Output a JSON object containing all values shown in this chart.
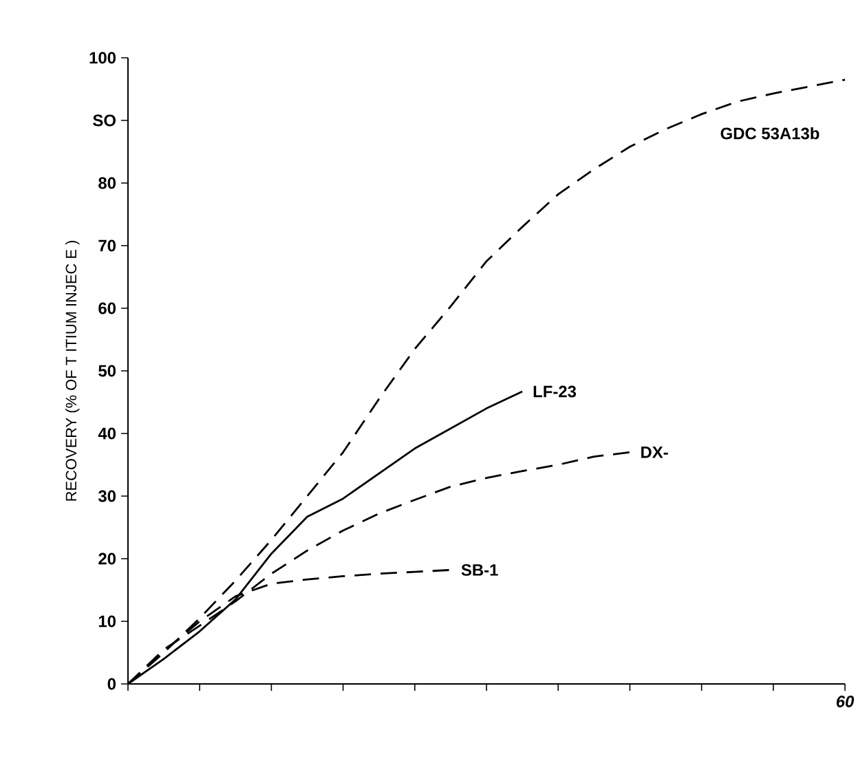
{
  "chart_data": {
    "type": "line",
    "ylabel": "RECOVERY (% OF T ITIUM INJEC E )",
    "categories": [
      null,
      null,
      null,
      null,
      null,
      null,
      null,
      null,
      null,
      null,
      null,
      null,
      null,
      null,
      null,
      null,
      null,
      null,
      null,
      null,
      "60"
    ],
    "ylim": [
      0,
      100
    ],
    "yticks": [
      0,
      10,
      20,
      30,
      40,
      50,
      60,
      70,
      80,
      {
        "value": 90,
        "label": "SO"
      },
      100
    ],
    "grid": false,
    "legend": false,
    "marker": "none",
    "series": [
      {
        "name": "GDC 53A13b",
        "color": "#000000",
        "line_style": "dashed",
        "values": [
          0,
          5,
          10.5,
          16.5,
          23,
          30,
          37,
          45.5,
          53.5,
          60.3,
          67.5,
          73,
          78.2,
          82.2,
          85.8,
          88.6,
          91,
          93,
          94.3,
          95.4,
          96.5
        ]
      },
      {
        "name": "LF-23",
        "color": "#000000",
        "line_style": "solid",
        "values": [
          0,
          4,
          8.4,
          13.5,
          20.8,
          26.7,
          29.6,
          33.6,
          37.6,
          40.8,
          44,
          46.7,
          null,
          null,
          null,
          null,
          null,
          null,
          null,
          null,
          null
        ]
      },
      {
        "name": "DX-",
        "color": "#000000",
        "line_style": "dashed",
        "values": [
          0,
          5.5,
          9.3,
          13.2,
          17.6,
          21.3,
          24.5,
          27.2,
          29.4,
          31.5,
          32.9,
          34,
          35,
          36.3,
          37,
          null,
          null,
          null,
          null,
          null,
          null
        ]
      },
      {
        "name": "SB-1",
        "color": "#000000",
        "line_style": "dashed",
        "values": [
          0,
          5.2,
          10,
          14,
          16,
          16.7,
          17.2,
          17.6,
          17.9,
          18.2,
          null,
          null,
          null,
          null,
          null,
          null,
          null,
          null,
          null,
          null,
          null
        ]
      }
    ]
  }
}
